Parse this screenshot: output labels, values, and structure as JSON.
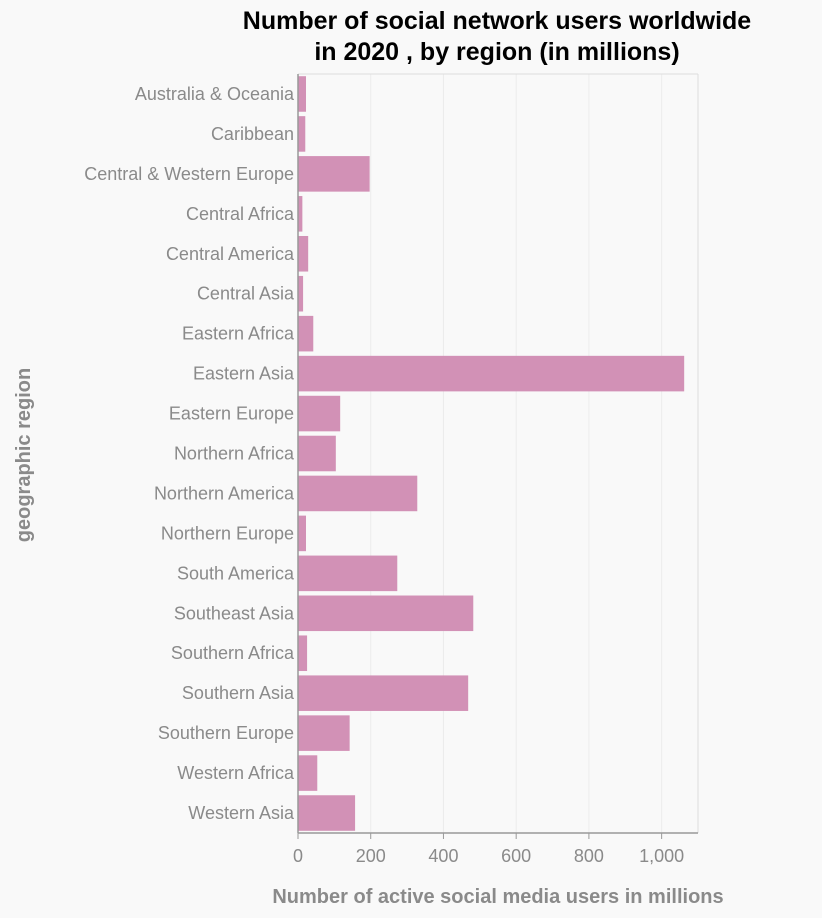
{
  "chart_data": {
    "type": "bar",
    "orientation": "horizontal",
    "title": "Number of social network users worldwide in 2020 , by region (in millions)",
    "title_lines": [
      "Number of social network users worldwide",
      "in 2020 , by region (in millions)"
    ],
    "xlabel": "Number of active social media users in millions",
    "ylabel": "geographic region",
    "categories": [
      "Australia & Oceania",
      "Caribbean",
      "Central & Western Europe",
      "Central Africa",
      "Central America",
      "Central Asia",
      "Eastern Africa",
      "Eastern Asia",
      "Eastern Europe",
      "Northern Africa",
      "Northern America",
      "Northern Europe",
      "South America",
      "Southeast Asia",
      "Southern Africa",
      "Southern Asia",
      "Southern Europe",
      "Western Africa",
      "Western Asia"
    ],
    "values": [
      22,
      20,
      197,
      12,
      28,
      14,
      42,
      1062,
      116,
      104,
      328,
      22,
      273,
      482,
      25,
      468,
      142,
      53,
      157
    ],
    "xlim": [
      0,
      1100
    ],
    "xticks": [
      0,
      200,
      400,
      600,
      800,
      1000
    ],
    "xtick_labels": [
      "0",
      "200",
      "400",
      "600",
      "800",
      "1,000"
    ],
    "grid": "vertical",
    "legend": "none",
    "colors": {
      "bar": "#d291b6",
      "background": "#f9f9f9",
      "grid": "#ececec",
      "axis": "#999999",
      "label": "#8a8a8a",
      "title": "#000000"
    }
  }
}
